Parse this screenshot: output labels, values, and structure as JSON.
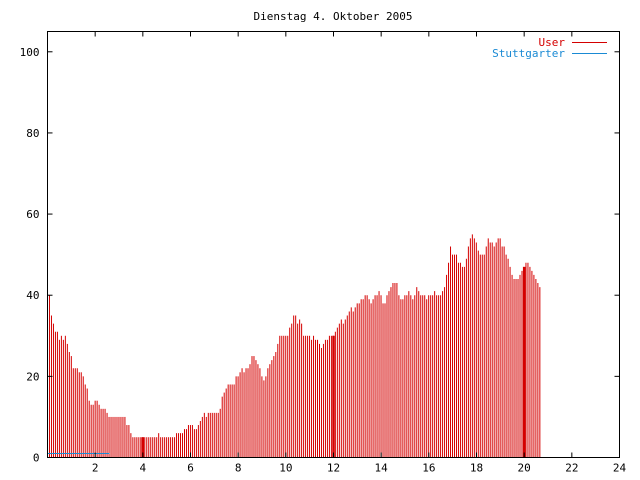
{
  "chart_data": {
    "type": "bar",
    "title": "Dienstag 4. Oktober 2005",
    "xlabel": "",
    "ylabel": "",
    "xlim": [
      0,
      24
    ],
    "ylim": [
      0,
      105
    ],
    "x_ticks": [
      2,
      4,
      6,
      8,
      10,
      12,
      14,
      16,
      18,
      20,
      22,
      24
    ],
    "y_ticks": [
      0,
      20,
      40,
      60,
      80,
      100
    ],
    "grid": false,
    "legend_position": "top-right",
    "series": [
      {
        "name": "User",
        "color": "#d40000",
        "x_start": 0,
        "x_step": 0.0833,
        "highlight_x": [
          4,
          12,
          20
        ],
        "values": [
          41,
          40,
          35,
          33,
          31,
          31,
          29,
          30,
          29,
          30,
          28,
          26,
          25,
          22,
          22,
          22,
          21,
          21,
          20,
          18,
          17,
          14,
          13,
          13,
          14,
          14,
          13,
          12,
          12,
          12,
          11,
          10,
          10,
          10,
          10,
          10,
          10,
          10,
          10,
          10,
          8,
          8,
          6,
          5,
          5,
          5,
          5,
          5,
          5,
          5,
          5,
          5,
          5,
          5,
          5,
          5,
          6,
          5,
          5,
          5,
          5,
          5,
          5,
          5,
          5,
          6,
          6,
          6,
          6,
          7,
          7,
          8,
          8,
          8,
          7,
          7,
          8,
          9,
          10,
          11,
          10,
          11,
          11,
          11,
          11,
          11,
          11,
          12,
          15,
          16,
          17,
          18,
          18,
          18,
          18,
          20,
          20,
          21,
          22,
          21,
          22,
          22,
          23,
          25,
          25,
          24,
          23,
          22,
          20,
          19,
          20,
          22,
          23,
          24,
          25,
          26,
          28,
          30,
          30,
          30,
          30,
          30,
          32,
          33,
          35,
          35,
          33,
          34,
          33,
          30,
          30,
          30,
          30,
          29,
          30,
          29,
          29,
          28,
          27,
          28,
          29,
          29,
          30,
          30,
          30,
          31,
          32,
          33,
          34,
          33,
          34,
          35,
          36,
          37,
          36,
          37,
          38,
          38,
          39,
          39,
          40,
          40,
          39,
          38,
          39,
          40,
          40,
          41,
          40,
          38,
          38,
          40,
          41,
          42,
          43,
          43,
          43,
          40,
          39,
          39,
          40,
          40,
          41,
          40,
          39,
          40,
          42,
          41,
          40,
          40,
          40,
          39,
          40,
          40,
          40,
          41,
          40,
          40,
          40,
          41,
          42,
          45,
          48,
          52,
          50,
          50,
          50,
          48,
          48,
          47,
          47,
          49,
          52,
          54,
          55,
          54,
          53,
          51,
          50,
          50,
          50,
          52,
          54,
          53,
          53,
          52,
          53,
          54,
          54,
          52,
          52,
          50,
          49,
          47,
          45,
          44,
          44,
          44,
          45,
          46,
          47,
          48,
          48,
          47,
          46,
          45,
          44,
          43,
          42
        ]
      },
      {
        "name": "Stuttgarter",
        "color": "#1a8ad4",
        "x_start": 0,
        "x_end": 2.6,
        "value": 1
      }
    ]
  }
}
